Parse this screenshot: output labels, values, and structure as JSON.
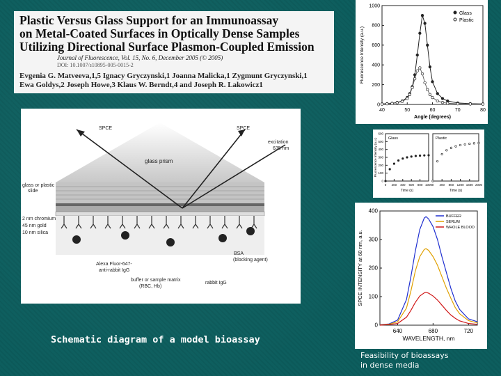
{
  "header": {
    "title_lines": [
      "Plastic Versus Glass Support for an Immunoassay",
      "on Metal-Coated Surfaces in Optically Dense Samples",
      "Utilizing Directional Surface Plasmon-Coupled Emission"
    ],
    "journal": "Journal of Fluorescence, Vol. 15, No. 6, December 2005 (© 2005)",
    "doi": "DOI: 10.1007/s10895-005-0015-2",
    "authors_lines": [
      "Evgenia G. Matveeva,1,5 Ignacy Gryczynski,1 Joanna Malicka,1 Zygmunt Gryczynski,1",
      "Ewa Goldys,2 Joseph Howe,3 Klaus W. Berndt,4 and Joseph R. Lakowicz1"
    ]
  },
  "diagram": {
    "labels": {
      "spce_left": "SPCE",
      "spce_right": "SPCE",
      "excitation": "excitation",
      "wavelength": "635 nm",
      "prism": "glass prism",
      "slide_1": "glass or plastic",
      "slide_2": "slide",
      "chromium": "2 nm chromium",
      "gold": "45 nm gold",
      "silica": "10 nm silica",
      "alexa_1": "Alexa Fluor-647-",
      "alexa_2": "anti-rabbit IgG",
      "bsa_1": "BSA",
      "bsa_2": "(blocking agent)",
      "buffer_1": "buffer or sample matrix",
      "buffer_2": "(RBC, Hb)",
      "rabbit": "rabbit IgG"
    }
  },
  "caption": "Schematic diagram of a model bioassay",
  "feasibility": [
    "Feasibility of bioassays",
    "in dense media"
  ],
  "chart_data": [
    {
      "type": "line",
      "x": [
        40,
        42,
        44,
        46,
        48,
        50,
        51,
        52,
        53,
        54,
        55,
        56,
        57,
        58,
        59,
        60,
        62,
        64,
        66,
        70,
        75,
        80
      ],
      "series": [
        {
          "name": "Glass",
          "values": [
            5,
            8,
            12,
            20,
            35,
            70,
            110,
            180,
            300,
            500,
            720,
            900,
            820,
            600,
            380,
            230,
            110,
            60,
            35,
            15,
            8,
            5
          ]
        },
        {
          "name": "Plastic",
          "values": [
            3,
            6,
            10,
            18,
            30,
            60,
            100,
            170,
            260,
            340,
            370,
            310,
            220,
            150,
            100,
            70,
            35,
            20,
            12,
            6,
            4,
            3
          ]
        }
      ],
      "xlabel": "Angle (degrees)",
      "ylabel": "Fluorescence Intensity (a.u.)",
      "xlim": [
        40,
        80
      ],
      "ylim": [
        0,
        1000
      ],
      "xticks": [
        40,
        50,
        60,
        70,
        80
      ],
      "yticks": [
        0,
        200,
        400,
        600,
        800,
        1000
      ],
      "legend_position": "top-right"
    },
    {
      "type": "scatter",
      "title": "Glass",
      "x": [
        0,
        100,
        200,
        300,
        400,
        500,
        600,
        700,
        800,
        900,
        1000
      ],
      "series": [
        {
          "name": "Glass",
          "values": [
            0,
            150,
            220,
            260,
            285,
            300,
            310,
            318,
            322,
            325,
            327
          ]
        }
      ],
      "xlabel": "Time (s)",
      "ylabel": "Fluorescence Intensity (a.u.)",
      "xlim": [
        0,
        1000
      ],
      "ylim": [
        0,
        600
      ],
      "xticks": [
        0,
        200,
        400,
        600,
        800,
        1000
      ],
      "yticks": [
        0,
        100,
        200,
        300,
        400,
        500,
        600
      ]
    },
    {
      "type": "scatter",
      "title": "Plastic",
      "x": [
        0,
        200,
        400,
        600,
        800,
        1000,
        1200,
        1400,
        1600,
        1800,
        2000
      ],
      "series": [
        {
          "name": "Plastic",
          "values": [
            0,
            250,
            340,
            390,
            420,
            440,
            455,
            465,
            472,
            478,
            482
          ]
        }
      ],
      "xlabel": "Time (s)",
      "xlim": [
        0,
        2000
      ],
      "ylim": [
        0,
        600
      ],
      "xticks": [
        0,
        400,
        800,
        1200,
        1600,
        2000
      ]
    },
    {
      "type": "line",
      "x": [
        620,
        630,
        640,
        650,
        655,
        660,
        665,
        670,
        672,
        675,
        680,
        685,
        690,
        695,
        700,
        705,
        710,
        720,
        730
      ],
      "series": [
        {
          "name": "BUFFER",
          "color": "#1f2fd0",
          "values": [
            2,
            4,
            18,
            90,
            170,
            260,
            335,
            375,
            380,
            372,
            345,
            300,
            240,
            185,
            130,
            85,
            55,
            22,
            12
          ]
        },
        {
          "name": "SERUM",
          "color": "#e0a000",
          "values": [
            1,
            3,
            12,
            60,
            120,
            190,
            240,
            265,
            268,
            262,
            240,
            210,
            170,
            130,
            95,
            62,
            40,
            16,
            8
          ]
        },
        {
          "name": "WHOLE BLOOD",
          "color": "#d01818",
          "values": [
            0,
            2,
            6,
            28,
            52,
            80,
            102,
            113,
            115,
            112,
            102,
            88,
            70,
            52,
            36,
            24,
            15,
            6,
            3
          ]
        }
      ],
      "xlabel": "WAVELENGTH, nm",
      "ylabel": "SPCE INTENSITY at 60 nm, a.u.",
      "xlim": [
        620,
        730
      ],
      "ylim": [
        0,
        400
      ],
      "xticks": [
        640,
        680,
        720
      ],
      "yticks": [
        0,
        100,
        200,
        300,
        400
      ],
      "legend_position": "top-right"
    }
  ]
}
